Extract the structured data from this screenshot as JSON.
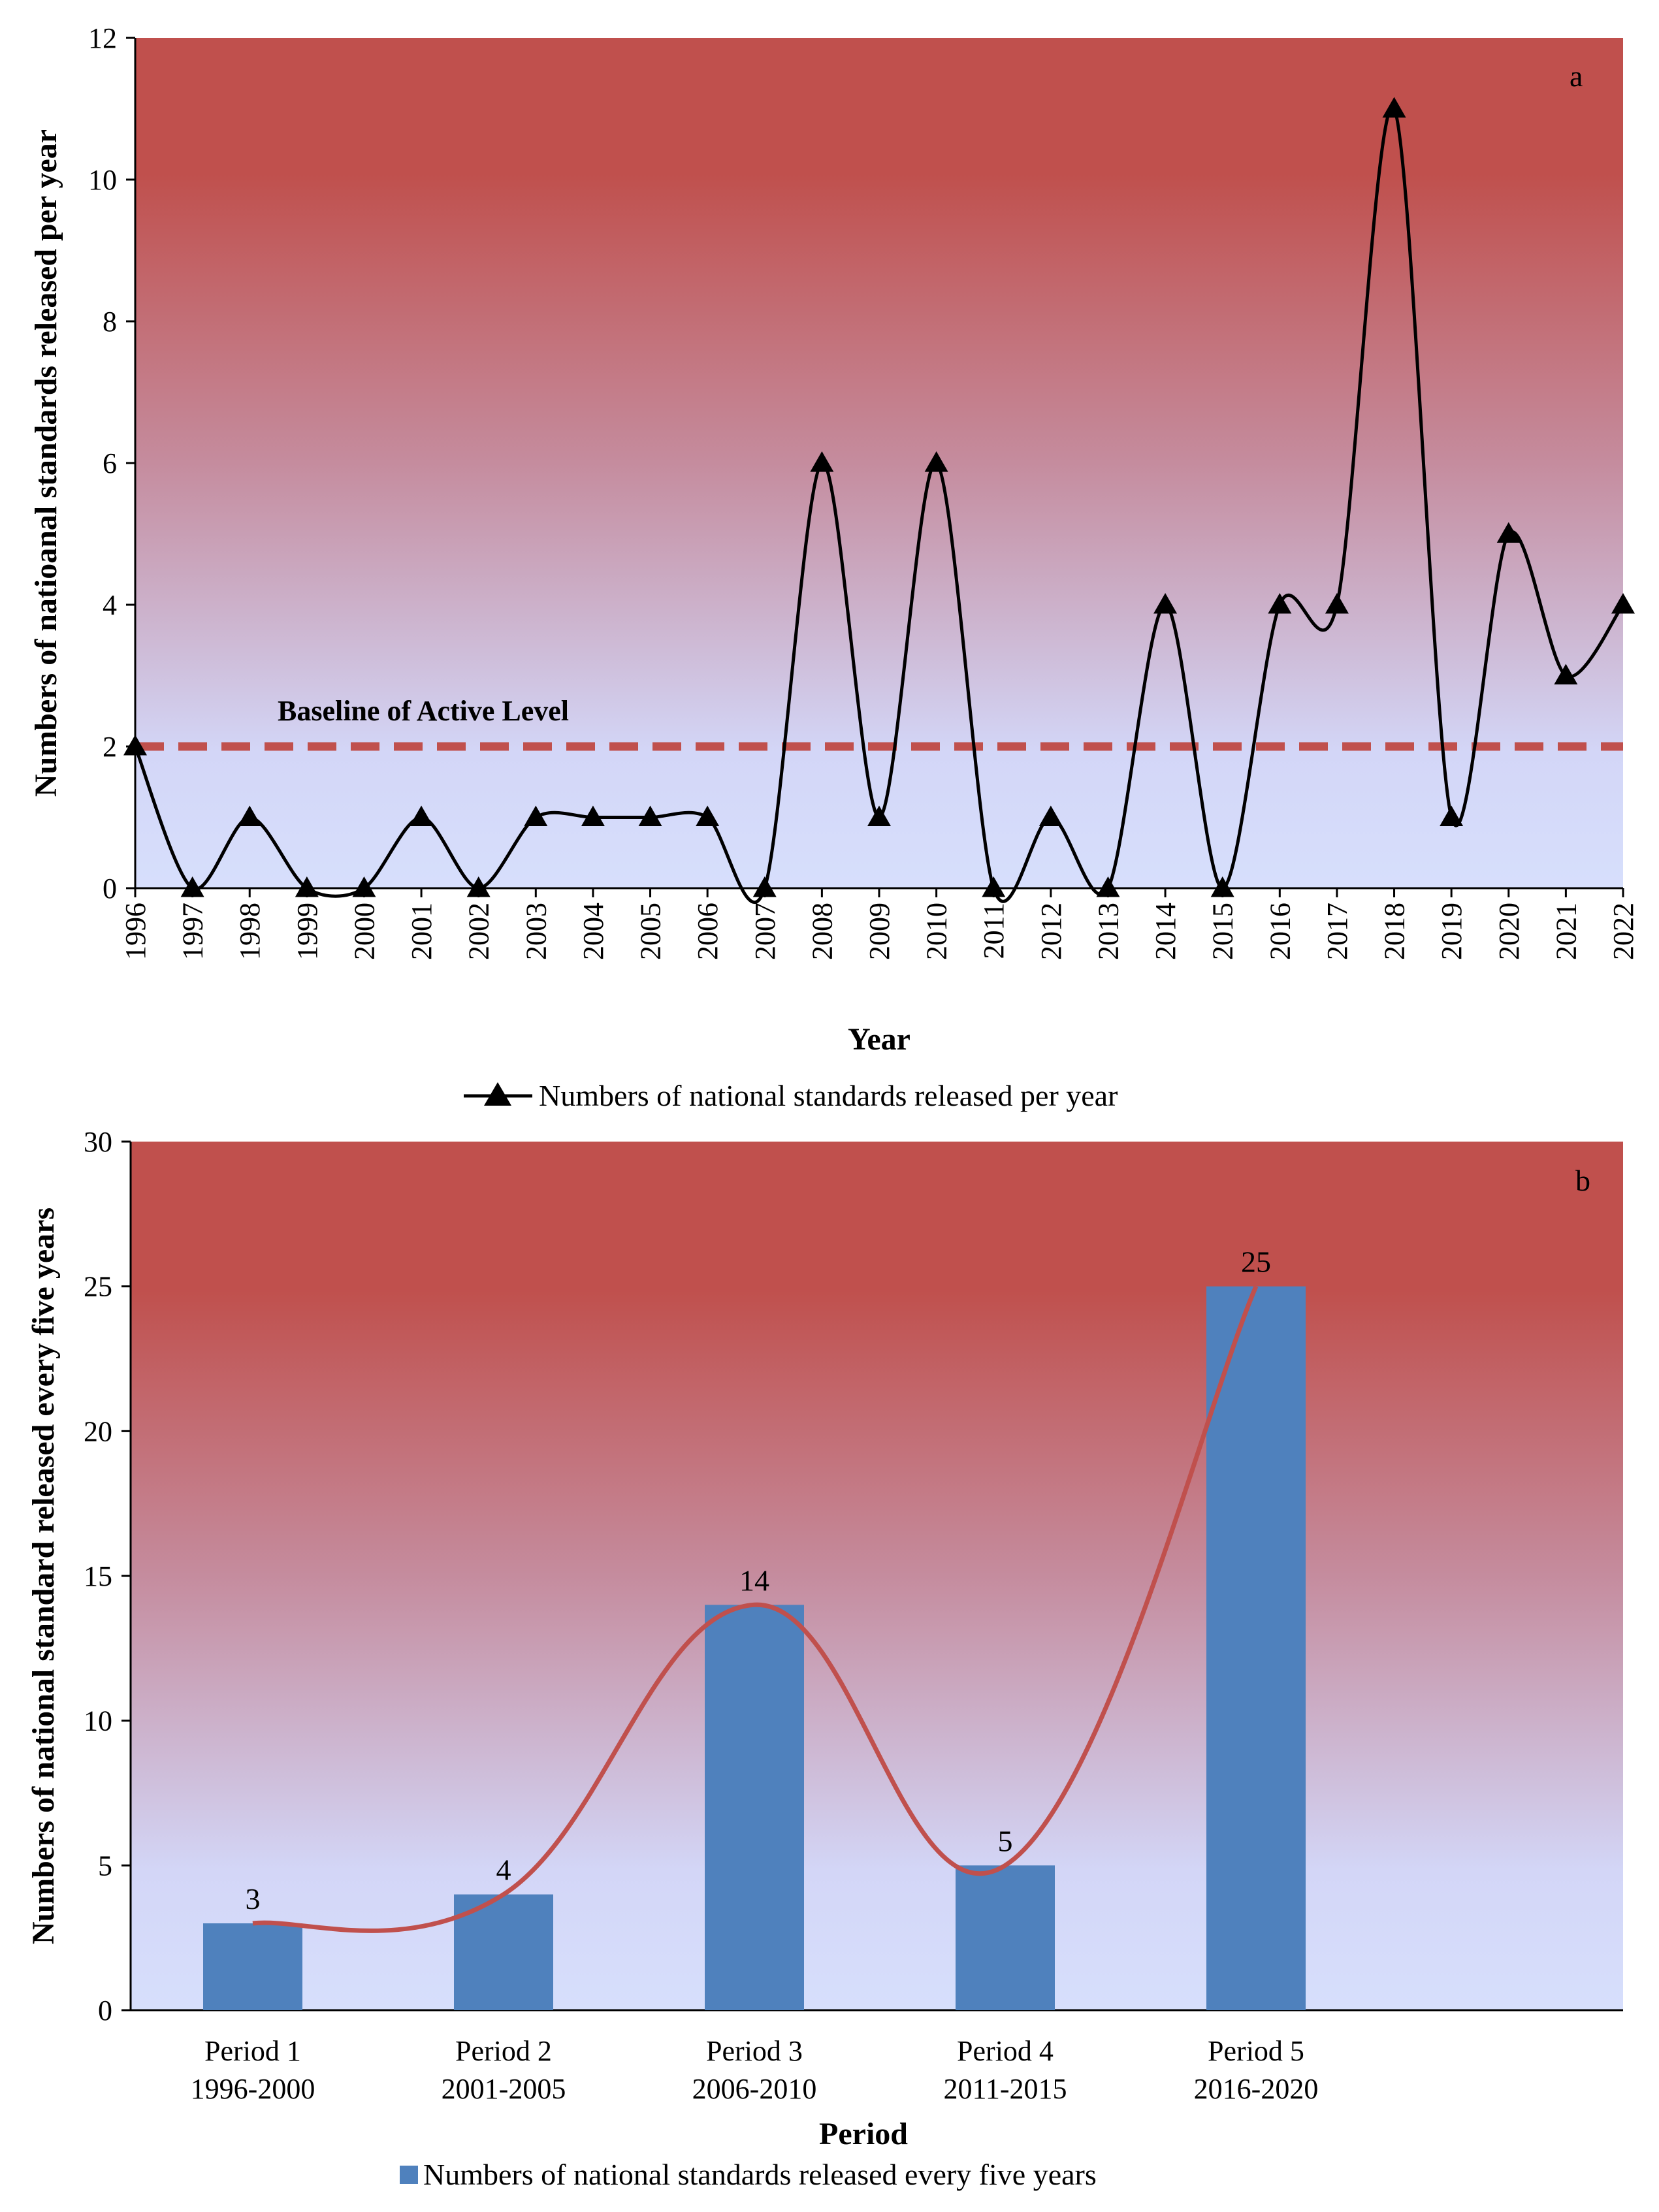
{
  "colors": {
    "top_red": "#c0504d",
    "bottom_blue": "#d7dffc",
    "bar_blue": "#4f81bd",
    "curve_red": "#c0504d",
    "baseline_red": "#c0504d",
    "line_black": "#000000"
  },
  "chart_data": [
    {
      "type": "line",
      "panel_letter": "a",
      "title": "",
      "xlabel": "Year",
      "ylabel": "Numbers of natioanal standards released per year",
      "ylim": [
        0,
        12
      ],
      "yticks": [
        "0",
        "2",
        "4",
        "6",
        "8",
        "10",
        "12"
      ],
      "categories": [
        "1996",
        "1997",
        "1998",
        "1999",
        "2000",
        "2001",
        "2002",
        "2003",
        "2004",
        "2005",
        "2006",
        "2007",
        "2008",
        "2009",
        "2010",
        "2011",
        "2012",
        "2013",
        "2014",
        "2015",
        "2016",
        "2017",
        "2018",
        "2019",
        "2020",
        "2021",
        "2022"
      ],
      "series": [
        {
          "name": "Numbers of national standards released per year",
          "values": [
            2,
            0,
            1,
            0,
            0,
            1,
            0,
            1,
            1,
            1,
            1,
            0,
            6,
            1,
            6,
            0,
            1,
            0,
            4,
            0,
            4,
            4,
            11,
            1,
            5,
            3,
            4
          ],
          "marker": "triangle"
        }
      ],
      "baseline": {
        "label": "Baseline of Active Level",
        "value": 2
      },
      "legend": "bottom",
      "grid": false
    },
    {
      "type": "bar",
      "panel_letter": "b",
      "title": "",
      "xlabel": "Period",
      "ylabel": "Numbers of national standard released  every five years",
      "ylim": [
        0,
        30
      ],
      "yticks": [
        "0",
        "5",
        "10",
        "15",
        "20",
        "25",
        "30"
      ],
      "categories": [
        {
          "name": "Period 1",
          "range": "1996-2000"
        },
        {
          "name": "Period 2",
          "range": "2001-2005"
        },
        {
          "name": "Period 3",
          "range": "2006-2010"
        },
        {
          "name": "Period 4",
          "range": "2011-2015"
        },
        {
          "name": "Period 5",
          "range": "2016-2020"
        }
      ],
      "series": [
        {
          "name": "Numbers of national standards released every five years",
          "values": [
            3,
            4,
            14,
            5,
            25
          ],
          "data_labels": [
            "3",
            "4",
            "14",
            "5",
            "25"
          ]
        }
      ],
      "trend_curve": true,
      "legend": "bottom",
      "grid": false
    }
  ]
}
